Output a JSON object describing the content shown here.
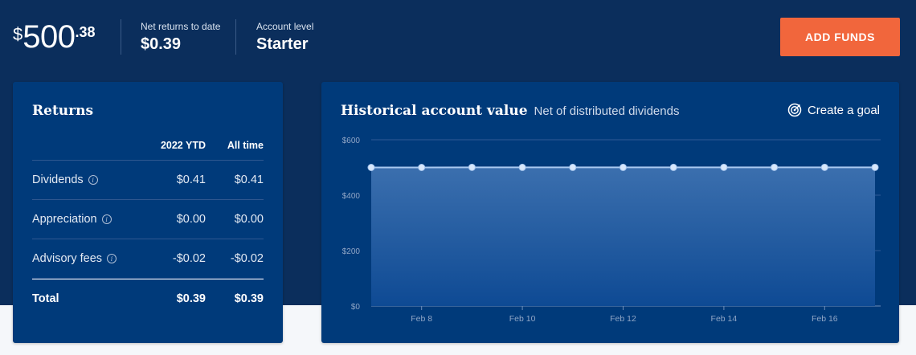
{
  "header": {
    "balance": {
      "currency": "$",
      "whole": "500",
      "cents": ".38"
    },
    "net_returns": {
      "label": "Net returns to date",
      "value": "$0.39"
    },
    "account_level": {
      "label": "Account level",
      "value": "Starter"
    },
    "add_funds_label": "ADD FUNDS"
  },
  "returns": {
    "title": "Returns",
    "columns": [
      "2022 YTD",
      "All time"
    ],
    "rows": [
      {
        "name": "Dividends",
        "ytd": "$0.41",
        "all": "$0.41"
      },
      {
        "name": "Appreciation",
        "ytd": "$0.00",
        "all": "$0.00"
      },
      {
        "name": "Advisory fees",
        "ytd": "-$0.02",
        "all": "-$0.02"
      }
    ],
    "total": {
      "name": "Total",
      "ytd": "$0.39",
      "all": "$0.39"
    }
  },
  "chart": {
    "title": "Historical account value",
    "subtitle": "Net of distributed dividends",
    "goal_label": "Create a goal"
  },
  "chart_data": {
    "type": "area",
    "title": "Historical account value",
    "subtitle": "Net of distributed dividends",
    "x": [
      "Feb 7",
      "Feb 8",
      "Feb 9",
      "Feb 10",
      "Feb 11",
      "Feb 12",
      "Feb 13",
      "Feb 14",
      "Feb 15",
      "Feb 16",
      "Feb 17"
    ],
    "xticks": [
      "Feb 8",
      "Feb 10",
      "Feb 12",
      "Feb 14",
      "Feb 16"
    ],
    "values": [
      500,
      500,
      500.4,
      500.2,
      500.2,
      500.3,
      500.3,
      500.4,
      500.4,
      500.4,
      500.38
    ],
    "yticks": [
      "$600",
      "$400",
      "$200",
      "$0"
    ],
    "ytick_values": [
      600,
      400,
      200,
      0
    ],
    "ylim": [
      0,
      600
    ],
    "grid": true,
    "colors": {
      "line": "#a9c8f0",
      "area_top": "#3b6fae",
      "area_bottom": "#0e4a94"
    }
  }
}
